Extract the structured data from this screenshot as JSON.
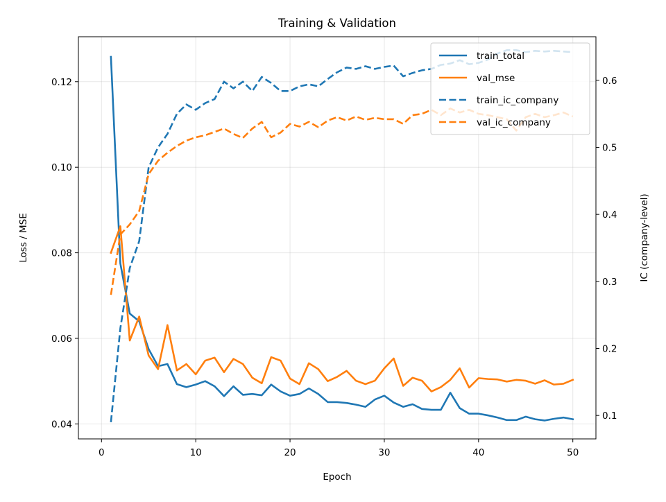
{
  "chart_data": {
    "type": "line",
    "title": "Training & Validation",
    "xlabel": "Epoch",
    "ylabel_left": "Loss / MSE",
    "ylabel_right": "IC (company-level)",
    "xlim": [
      -2.45,
      52.45
    ],
    "ylim_left": [
      0.0365,
      0.1305
    ],
    "ylim_right": [
      0.065,
      0.665
    ],
    "x_ticks": [
      0,
      10,
      20,
      30,
      40,
      50
    ],
    "y_left_ticks": [
      0.04,
      0.06,
      0.08,
      0.1,
      0.12
    ],
    "y_left_tick_labels": [
      "0.04",
      "0.06",
      "0.08",
      "0.10",
      "0.12"
    ],
    "y_right_ticks": [
      0.1,
      0.2,
      0.3,
      0.4,
      0.5,
      0.6
    ],
    "y_right_tick_labels": [
      "0.1",
      "0.2",
      "0.3",
      "0.4",
      "0.5",
      "0.6"
    ],
    "grid": true,
    "legend_position": "upper right",
    "x": [
      1,
      2,
      3,
      4,
      5,
      6,
      7,
      8,
      9,
      10,
      11,
      12,
      13,
      14,
      15,
      16,
      17,
      18,
      19,
      20,
      21,
      22,
      23,
      24,
      25,
      26,
      27,
      28,
      29,
      30,
      31,
      32,
      33,
      34,
      35,
      36,
      37,
      38,
      39,
      40,
      41,
      42,
      43,
      44,
      45,
      46,
      47,
      48,
      49,
      50
    ],
    "series": [
      {
        "name": "train_total",
        "axis": "left",
        "style": "solid",
        "color": "#1f77b4",
        "values": [
          0.1258,
          0.0775,
          0.0658,
          0.064,
          0.0575,
          0.0535,
          0.054,
          0.0493,
          0.0486,
          0.0492,
          0.05,
          0.0488,
          0.0465,
          0.0488,
          0.0468,
          0.047,
          0.0467,
          0.0492,
          0.0476,
          0.0466,
          0.047,
          0.0483,
          0.047,
          0.0451,
          0.0451,
          0.0449,
          0.0445,
          0.044,
          0.0457,
          0.0466,
          0.045,
          0.044,
          0.0446,
          0.0435,
          0.0433,
          0.0433,
          0.0473,
          0.0437,
          0.0424,
          0.0424,
          0.042,
          0.0415,
          0.0409,
          0.0409,
          0.0417,
          0.0411,
          0.0408,
          0.0412,
          0.0415,
          0.0411
        ]
      },
      {
        "name": "val_mse",
        "axis": "left",
        "style": "solid",
        "color": "#ff7f0e",
        "values": [
          0.08,
          0.0862,
          0.0595,
          0.0651,
          0.056,
          0.0528,
          0.0631,
          0.0525,
          0.054,
          0.0516,
          0.0548,
          0.0555,
          0.0521,
          0.0552,
          0.054,
          0.0508,
          0.0495,
          0.0556,
          0.0548,
          0.0506,
          0.0493,
          0.0542,
          0.0528,
          0.05,
          0.051,
          0.0524,
          0.0501,
          0.0493,
          0.0501,
          0.053,
          0.0553,
          0.0489,
          0.0508,
          0.0501,
          0.0476,
          0.0486,
          0.0503,
          0.053,
          0.0485,
          0.0507,
          0.0505,
          0.0504,
          0.0499,
          0.0503,
          0.0501,
          0.0494,
          0.0502,
          0.0492,
          0.0494,
          0.0503
        ]
      },
      {
        "name": "train_ic_company",
        "axis": "right",
        "style": "dashed",
        "color": "#1f77b4",
        "values": [
          0.09,
          0.23,
          0.32,
          0.36,
          0.47,
          0.5,
          0.52,
          0.55,
          0.564,
          0.556,
          0.566,
          0.572,
          0.598,
          0.588,
          0.598,
          0.584,
          0.605,
          0.596,
          0.584,
          0.584,
          0.591,
          0.594,
          0.591,
          0.602,
          0.612,
          0.619,
          0.617,
          0.621,
          0.617,
          0.62,
          0.622,
          0.606,
          0.611,
          0.615,
          0.617,
          0.623,
          0.625,
          0.63,
          0.624,
          0.626,
          0.631,
          0.64,
          0.645,
          0.645,
          0.642,
          0.644,
          0.643,
          0.644,
          0.643,
          0.642
        ]
      },
      {
        "name": "val_ic_company",
        "axis": "right",
        "style": "dashed",
        "color": "#ff7f0e",
        "values": [
          0.28,
          0.37,
          0.385,
          0.405,
          0.46,
          0.48,
          0.492,
          0.502,
          0.51,
          0.515,
          0.518,
          0.523,
          0.528,
          0.52,
          0.514,
          0.528,
          0.538,
          0.515,
          0.522,
          0.535,
          0.531,
          0.538,
          0.53,
          0.54,
          0.545,
          0.54,
          0.546,
          0.541,
          0.544,
          0.542,
          0.542,
          0.535,
          0.548,
          0.55,
          0.556,
          0.548,
          0.558,
          0.552,
          0.556,
          0.55,
          0.548,
          0.545,
          0.542,
          0.525,
          0.545,
          0.55,
          0.545,
          0.548,
          0.552,
          0.546
        ]
      }
    ]
  }
}
